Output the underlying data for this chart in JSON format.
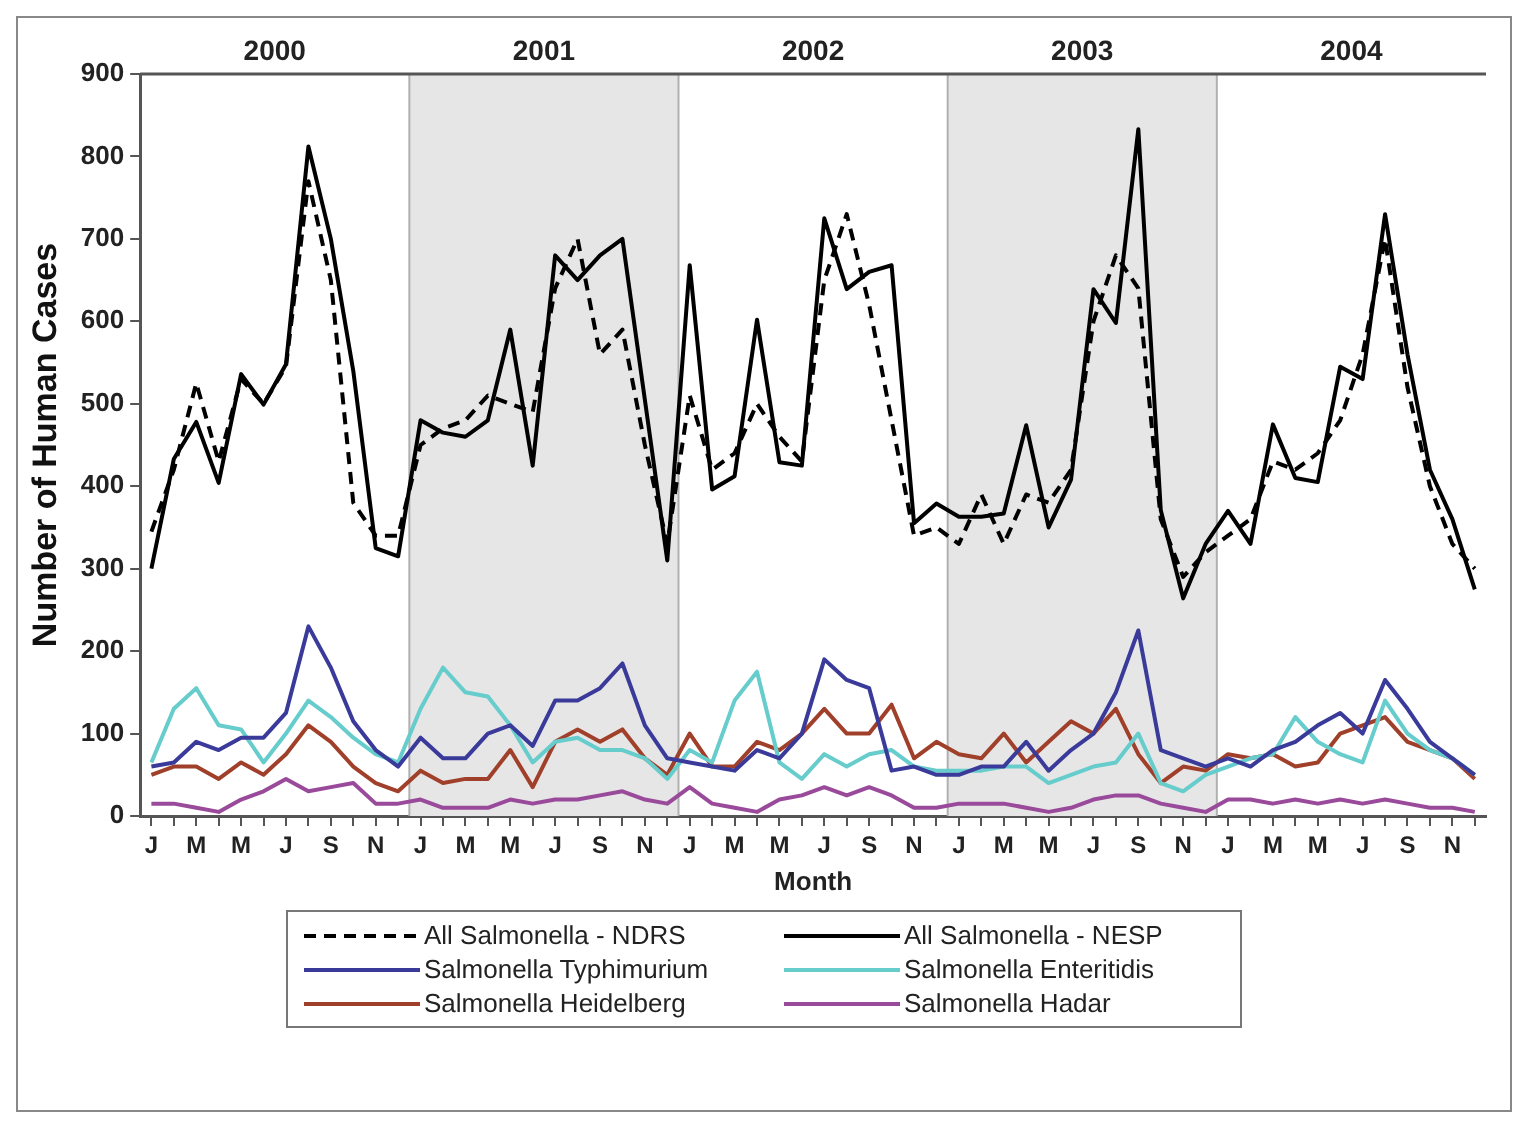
{
  "chart_data": {
    "type": "line",
    "xlabel": "Month",
    "ylabel": "Number of Human Cases",
    "categories": [
      "J",
      null,
      "M",
      null,
      "M",
      null,
      "J",
      null,
      "S",
      null,
      "N",
      null,
      "J",
      null,
      "M",
      null,
      "M",
      null,
      "J",
      null,
      "S",
      null,
      "N",
      null,
      "J",
      null,
      "M",
      null,
      "M",
      null,
      "J",
      null,
      "S",
      null,
      "N",
      null,
      "J",
      null,
      "M",
      null,
      "M",
      null,
      "J",
      null,
      "S",
      null,
      "N",
      null,
      "J",
      null,
      "M",
      null,
      "M",
      null,
      "J",
      null,
      "S",
      null,
      "N",
      null
    ],
    "series": [
      {
        "name": "All Salmonella - NDRS",
        "color": "#000000",
        "line_style": "dashed",
        "values": [
          345,
          420,
          525,
          430,
          530,
          500,
          545,
          770,
          650,
          380,
          340,
          340,
          450,
          470,
          480,
          510,
          500,
          490,
          640,
          700,
          560,
          590,
          450,
          330,
          510,
          420,
          440,
          500,
          460,
          430,
          650,
          730,
          620,
          480,
          340,
          350,
          330,
          390,
          330,
          390,
          380,
          420,
          600,
          680,
          640,
          360,
          290,
          320,
          340,
          360,
          430,
          420,
          440,
          480,
          560,
          700,
          520,
          400,
          330,
          300
        ]
      },
      {
        "name": "All Salmonella - NESP",
        "color": "#000000",
        "line_style": "solid",
        "values": [
          300,
          433,
          478,
          404,
          536,
          499,
          548,
          812,
          700,
          540,
          325,
          315,
          480,
          465,
          460,
          480,
          590,
          425,
          680,
          650,
          680,
          700,
          505,
          310,
          668,
          396,
          412,
          602,
          429,
          425,
          725,
          639,
          660,
          668,
          355,
          379,
          363,
          363,
          367,
          474,
          350,
          408,
          639,
          598,
          833,
          371,
          264,
          330,
          370,
          330,
          475,
          410,
          405,
          545,
          530,
          730,
          560,
          420,
          360,
          275
        ]
      },
      {
        "name": "Salmonella Typhimurium",
        "color": "#3a3a9a",
        "line_style": "solid",
        "values": [
          60,
          65,
          90,
          80,
          95,
          95,
          125,
          230,
          180,
          115,
          80,
          60,
          95,
          70,
          70,
          100,
          110,
          85,
          140,
          140,
          155,
          185,
          110,
          70,
          65,
          60,
          55,
          80,
          70,
          100,
          190,
          165,
          155,
          55,
          60,
          50,
          50,
          60,
          60,
          90,
          55,
          80,
          100,
          150,
          225,
          80,
          70,
          60,
          70,
          60,
          80,
          90,
          110,
          125,
          100,
          165,
          130,
          90,
          70,
          50
        ]
      },
      {
        "name": "Salmonella Enteritidis",
        "color": "#66cccc",
        "line_style": "solid",
        "values": [
          65,
          130,
          155,
          110,
          105,
          65,
          100,
          140,
          120,
          95,
          75,
          65,
          130,
          180,
          150,
          145,
          110,
          65,
          90,
          95,
          80,
          80,
          70,
          45,
          80,
          65,
          140,
          175,
          65,
          45,
          75,
          60,
          75,
          80,
          60,
          55,
          55,
          55,
          60,
          60,
          40,
          50,
          60,
          65,
          100,
          40,
          30,
          50,
          60,
          70,
          75,
          120,
          90,
          75,
          65,
          140,
          100,
          80,
          70,
          50
        ]
      },
      {
        "name": "Salmonella Heidelberg",
        "color": "#a0402a",
        "line_style": "solid",
        "values": [
          50,
          60,
          60,
          45,
          65,
          50,
          75,
          110,
          90,
          60,
          40,
          30,
          55,
          40,
          45,
          45,
          80,
          35,
          90,
          105,
          90,
          105,
          70,
          50,
          100,
          60,
          60,
          90,
          80,
          100,
          130,
          100,
          100,
          135,
          70,
          90,
          75,
          70,
          100,
          65,
          90,
          115,
          100,
          130,
          75,
          40,
          60,
          55,
          75,
          70,
          75,
          60,
          65,
          100,
          110,
          120,
          90,
          80,
          70,
          45
        ]
      },
      {
        "name": "Salmonella Hadar",
        "color": "#9a4a9a",
        "line_style": "solid",
        "values": [
          15,
          15,
          10,
          5,
          20,
          30,
          45,
          30,
          35,
          40,
          15,
          15,
          20,
          10,
          10,
          10,
          20,
          15,
          20,
          20,
          25,
          30,
          20,
          15,
          35,
          15,
          10,
          5,
          20,
          25,
          35,
          25,
          35,
          25,
          10,
          10,
          15,
          15,
          15,
          10,
          5,
          10,
          20,
          25,
          25,
          15,
          10,
          5,
          20,
          20,
          15,
          20,
          15,
          20,
          15,
          20,
          15,
          10,
          10,
          5
        ]
      }
    ],
    "ylim": [
      0,
      900
    ],
    "yticks": [
      0,
      100,
      200,
      300,
      400,
      500,
      600,
      700,
      800,
      900
    ],
    "annotations": [
      "2000",
      "2001",
      "2002",
      "2003",
      "2004"
    ],
    "grid": false,
    "legend": "bottom",
    "marker": "none"
  }
}
